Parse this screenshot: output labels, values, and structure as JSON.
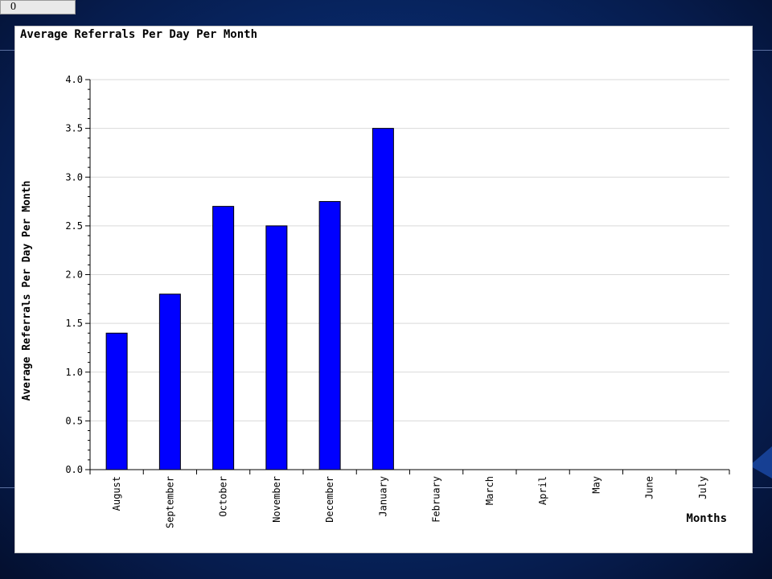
{
  "slide_counter": "0",
  "chart_data": {
    "type": "bar",
    "title": "Average Referrals Per Day Per Month",
    "xlabel": "Months",
    "ylabel": "Average Referrals Per Day Per Month",
    "categories": [
      "August",
      "September",
      "October",
      "November",
      "December",
      "January",
      "February",
      "March",
      "April",
      "May",
      "June",
      "July"
    ],
    "values": [
      1.4,
      1.8,
      2.7,
      2.5,
      2.75,
      3.5,
      null,
      null,
      null,
      null,
      null,
      null
    ],
    "yticks": [
      "0.0",
      "0.5",
      "1.0",
      "1.5",
      "2.0",
      "2.5",
      "3.0",
      "3.5",
      "4.0"
    ],
    "ylim": [
      0,
      4
    ],
    "grid": true,
    "bar_color": "#0000ff",
    "bar_outline": "#000000",
    "grid_color": "#d9d9d9"
  }
}
